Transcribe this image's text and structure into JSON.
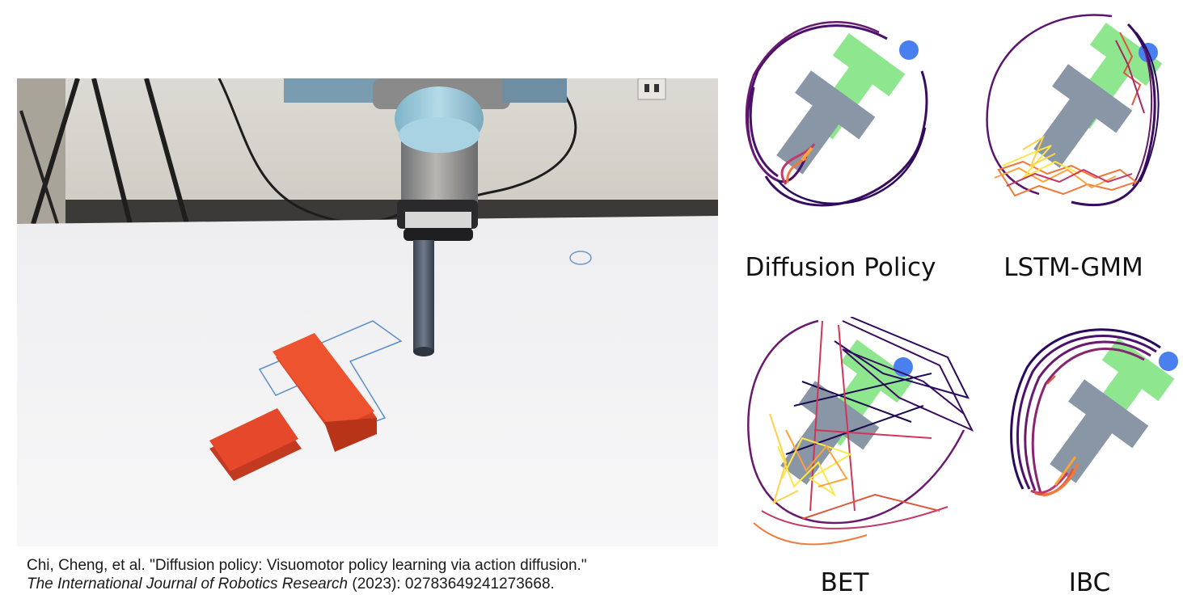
{
  "photo": {
    "description_icon": "robot-arm-pushing-t-block-photo",
    "colors": {
      "t_block": "#e5482a",
      "wall": "#dedbd4",
      "table": "#f3f3f4",
      "robot_cap": "#9cc8d8",
      "outline": "#5b8fc8"
    }
  },
  "caption": {
    "line1": "Chi, Cheng, et al. \"Diffusion policy: Visuomotor policy learning via action diffusion.\"",
    "journal": "The International Journal of Robotics Research",
    "line2_rest": " (2023): 02783649241273668."
  },
  "panels": [
    {
      "label": "Diffusion Policy"
    },
    {
      "label": "LSTM-GMM"
    },
    {
      "label": "BET"
    },
    {
      "label": "IBC"
    }
  ],
  "panel_colors": {
    "goal_t": "#8ee68e",
    "current_t": "#8996a6",
    "agent_dot": "#4a7ff0",
    "trajectory_start": "#2a0a5e",
    "trajectory_mid": "#c23a6a",
    "trajectory_end": "#fde64b"
  }
}
